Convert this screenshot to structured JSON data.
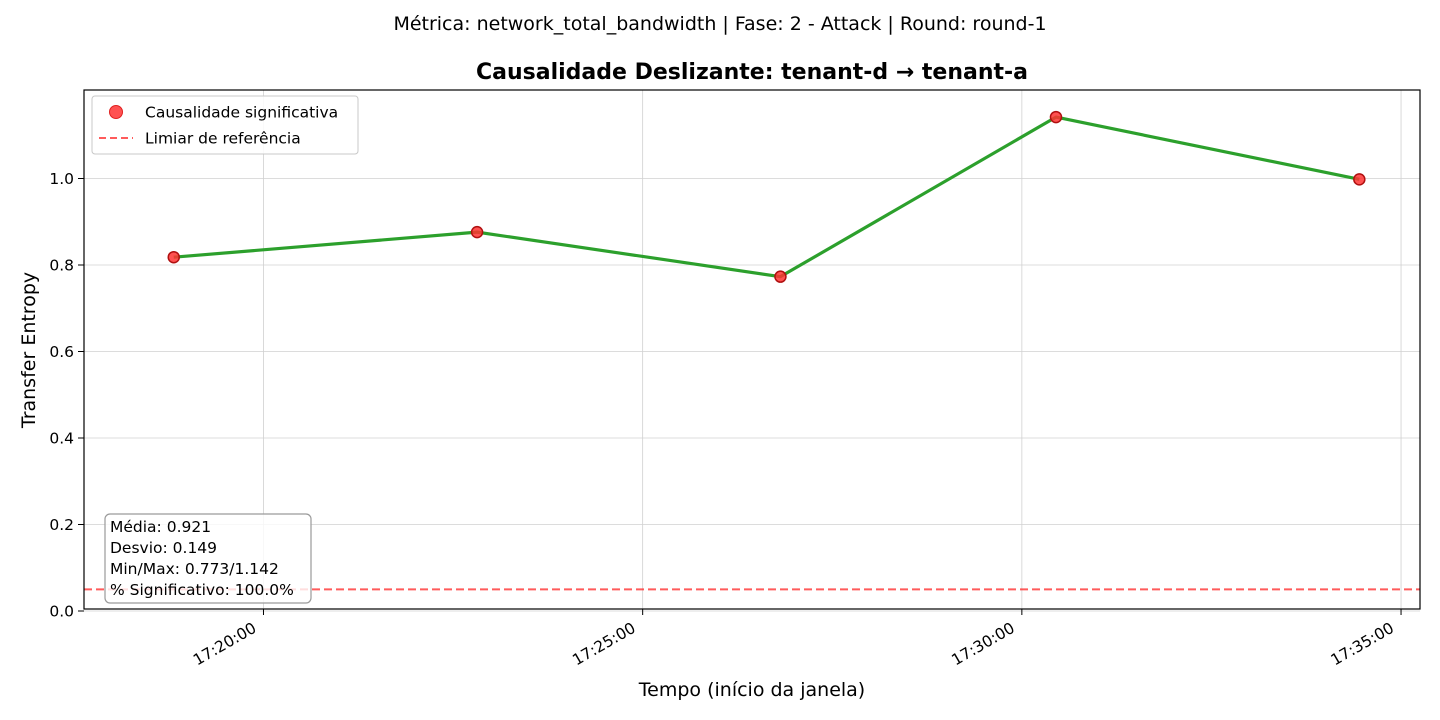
{
  "suptitle": "Métrica: network_total_bandwidth | Fase: 2 - Attack | Round: round-1",
  "chart_data": {
    "type": "line",
    "title": "Causalidade Deslizante: tenant-d → tenant-a",
    "xlabel": "Tempo (início da janela)",
    "ylabel": "Transfer Entropy",
    "x_unit": "time (HH:MM:SS)",
    "x_ticks": [
      "17:20:00",
      "17:25:00",
      "17:30:00",
      "17:35:00"
    ],
    "y_ticks": [
      "0.0",
      "0.2",
      "0.4",
      "0.6",
      "0.8",
      "1.0"
    ],
    "xlim": [
      "17:17:38",
      "17:35:15"
    ],
    "ylim": [
      0.0,
      1.2
    ],
    "grid": true,
    "legend_position": "upper-left",
    "series": [
      {
        "x": [
          "17:18:49",
          "17:22:49",
          "17:26:49",
          "17:30:27",
          "17:34:27"
        ],
        "values": [
          0.818,
          0.876,
          0.773,
          1.142,
          0.998
        ],
        "line_color": "#2ca02c",
        "marker_color": "#ff3333",
        "marker_edge_color": "#b01010"
      }
    ],
    "legend": [
      {
        "label": "Causalidade significativa",
        "kind": "marker",
        "color": "#ff3333"
      },
      {
        "label": "Limiar de referência",
        "kind": "dashed-line",
        "color": "#ff3333"
      }
    ],
    "reference_line": {
      "y": 0.05,
      "color": "#ff3333",
      "style": "dashed"
    },
    "stats_box": [
      "Média: 0.921",
      "Desvio: 0.149",
      "Min/Max: 0.773/1.142",
      "% Significativo: 100.0%"
    ]
  }
}
